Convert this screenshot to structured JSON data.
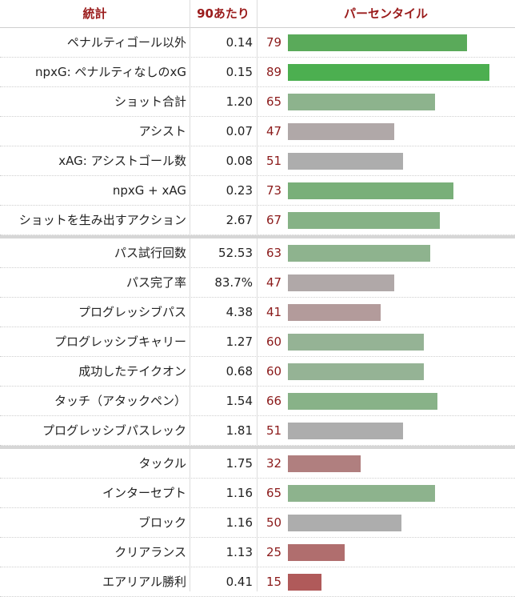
{
  "header": {
    "stat": "統計",
    "per90": "90あたり",
    "percentile": "パーセンタイル"
  },
  "groups": [
    [
      {
        "stat": "ペナルティゴール以外",
        "value": "0.14",
        "percentile": 79,
        "color": "#5aaa5a"
      },
      {
        "stat": "npxG: ペナルティなしのxG",
        "value": "0.15",
        "percentile": 89,
        "color": "#4caf50"
      },
      {
        "stat": "ショット合計",
        "value": "1.20",
        "percentile": 65,
        "color": "#8db38d"
      },
      {
        "stat": "アシスト",
        "value": "0.07",
        "percentile": 47,
        "color": "#b0a8a8"
      },
      {
        "stat": "xAG: アシストゴール数",
        "value": "0.08",
        "percentile": 51,
        "color": "#adadad"
      },
      {
        "stat": "npxG + xAG",
        "value": "0.23",
        "percentile": 73,
        "color": "#79af79"
      },
      {
        "stat": "ショットを生み出すアクション",
        "value": "2.67",
        "percentile": 67,
        "color": "#86b286"
      }
    ],
    [
      {
        "stat": "パス試行回数",
        "value": "52.53",
        "percentile": 63,
        "color": "#8eb38e"
      },
      {
        "stat": "パス完了率",
        "value": "83.7%",
        "percentile": 47,
        "color": "#b0a8a8"
      },
      {
        "stat": "プログレッシブパス",
        "value": "4.38",
        "percentile": 41,
        "color": "#b39b9b"
      },
      {
        "stat": "プログレッシブキャリー",
        "value": "1.27",
        "percentile": 60,
        "color": "#95b395"
      },
      {
        "stat": "成功したテイクオン",
        "value": "0.68",
        "percentile": 60,
        "color": "#95b395"
      },
      {
        "stat": "タッチ（アタックペン）",
        "value": "1.54",
        "percentile": 66,
        "color": "#88b288"
      },
      {
        "stat": "プログレッシブパスレック",
        "value": "1.81",
        "percentile": 51,
        "color": "#adadad"
      }
    ],
    [
      {
        "stat": "タックル",
        "value": "1.75",
        "percentile": 32,
        "color": "#b07f7f"
      },
      {
        "stat": "インターセプト",
        "value": "1.16",
        "percentile": 65,
        "color": "#8db38d"
      },
      {
        "stat": "ブロック",
        "value": "1.16",
        "percentile": 50,
        "color": "#adadad"
      },
      {
        "stat": "クリアランス",
        "value": "1.13",
        "percentile": 25,
        "color": "#b06e6e"
      },
      {
        "stat": "エアリアル勝利",
        "value": "0.41",
        "percentile": 15,
        "color": "#b05a5a"
      }
    ]
  ]
}
